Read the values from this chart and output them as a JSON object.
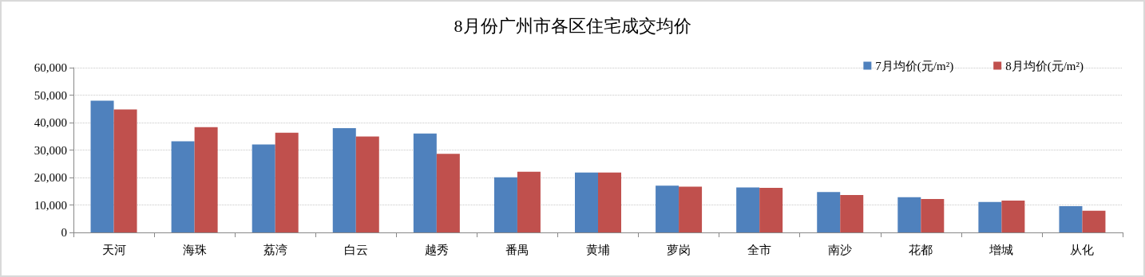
{
  "chart_data": {
    "type": "bar",
    "title": "8月份广州市各区住宅成交均价",
    "categories": [
      "天河",
      "海珠",
      "荔湾",
      "白云",
      "越秀",
      "番禺",
      "黄埔",
      "萝岗",
      "全市",
      "南沙",
      "花都",
      "增城",
      "从化"
    ],
    "series": [
      {
        "name": "7月均价(元/m²)",
        "color": "#4f81bd",
        "values": [
          48000,
          33200,
          32000,
          38000,
          36000,
          20100,
          21800,
          17000,
          16400,
          14700,
          12800,
          11100,
          9600
        ]
      },
      {
        "name": "8月均价(元/m²)",
        "color": "#c0504d",
        "values": [
          44800,
          38300,
          36300,
          34900,
          28600,
          22100,
          21800,
          16700,
          16200,
          13600,
          12200,
          11600,
          7900
        ]
      }
    ],
    "ylim": [
      0,
      60000
    ],
    "yticks": [
      0,
      {
        "value": 10000,
        "label": "10,000"
      },
      {
        "value": 20000,
        "label": "20,000"
      },
      {
        "value": 30000,
        "label": "30,000"
      },
      {
        "value": 40000,
        "label": "40,000"
      },
      {
        "value": 50000,
        "label": "50,000"
      },
      {
        "value": 60000,
        "label": "60,000"
      }
    ],
    "grid": "y",
    "legend": "top right"
  }
}
